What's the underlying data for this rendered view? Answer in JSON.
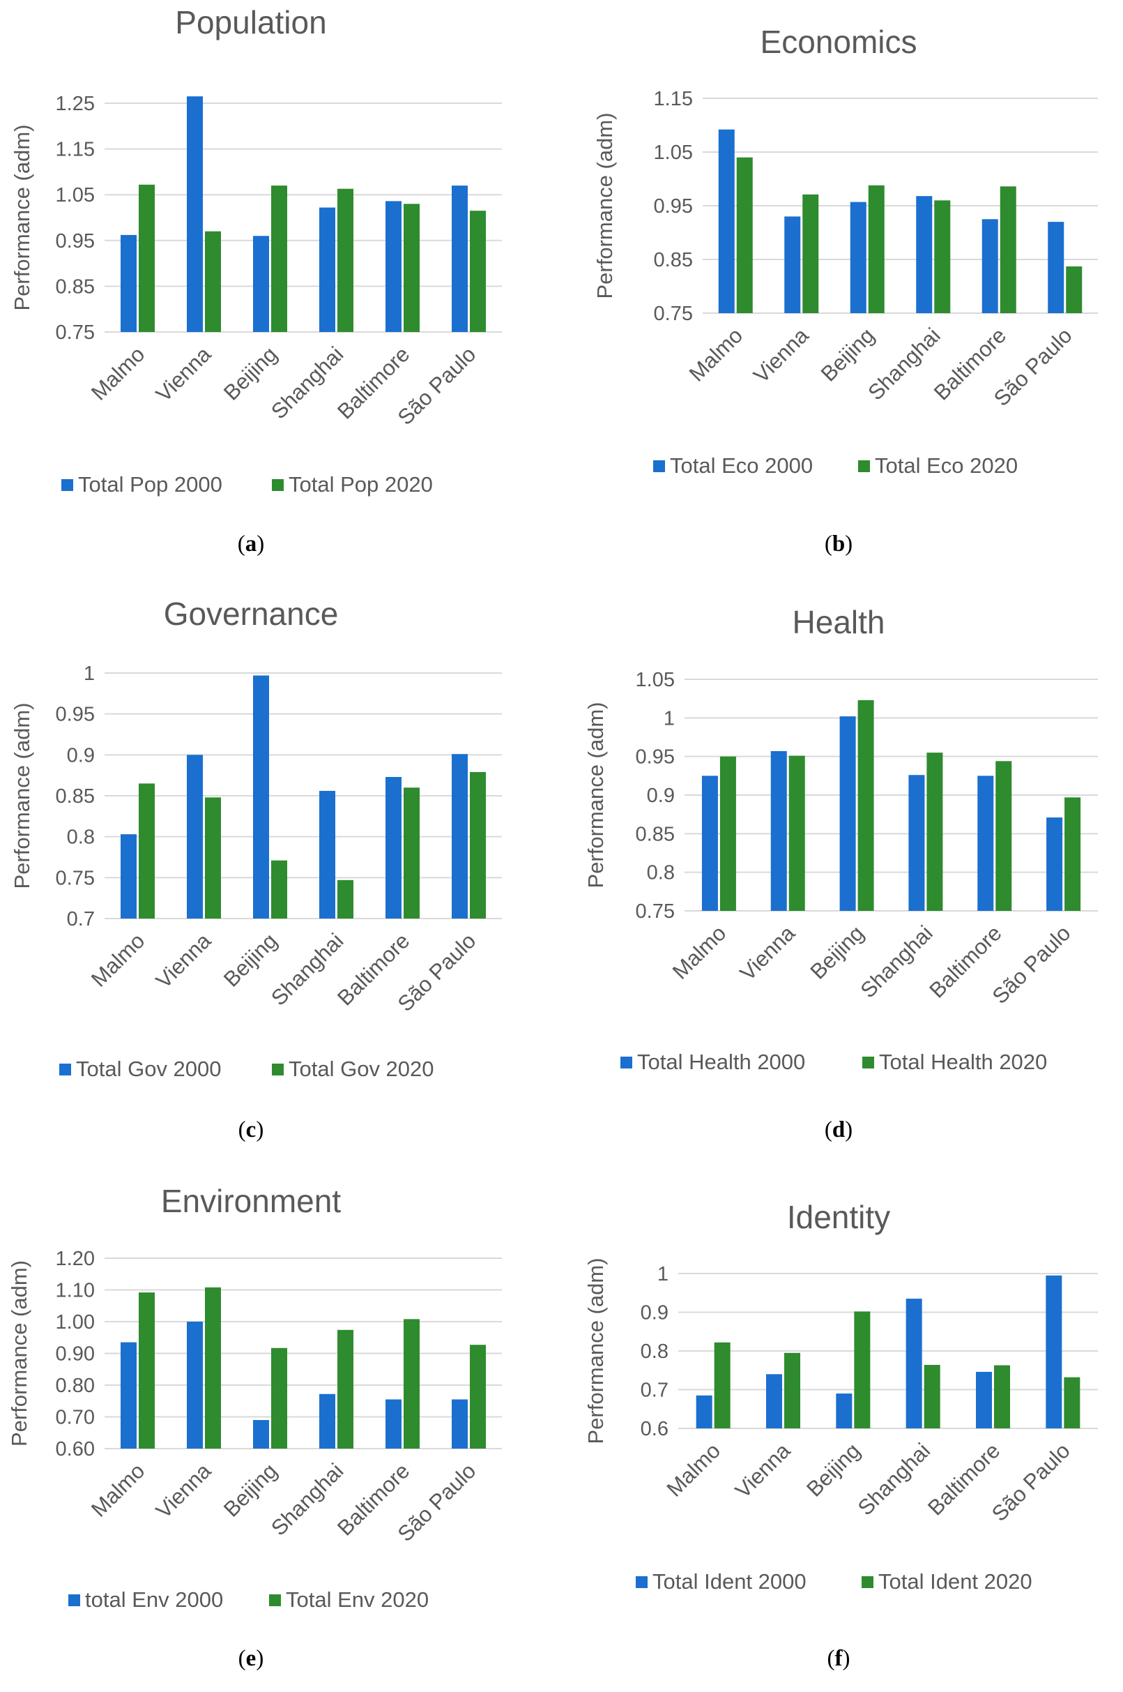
{
  "colors": {
    "series_2000": "#1b6fcf",
    "series_2020": "#2e8b2e",
    "grid": "#d9d9d9",
    "text": "#595959"
  },
  "chart_data": [
    {
      "type": "bar",
      "panel": "(a)",
      "caption_letter": "a",
      "title": "Population",
      "ylabel": "Performance (adm)",
      "categories": [
        "Malmo",
        "Vienna",
        "Beijing",
        "Shanghai",
        "Baltimore",
        "São Paulo"
      ],
      "yticks": [
        "0.75",
        "0.85",
        "0.95",
        "1.05",
        "1.15",
        "1.25"
      ],
      "ylim": [
        0.75,
        1.25
      ],
      "legend_position": "bottom",
      "series": [
        {
          "name": "Total Pop 2000",
          "values": [
            0.962,
            1.265,
            0.96,
            1.022,
            1.036,
            1.07
          ]
        },
        {
          "name": "Total Pop 2020",
          "values": [
            1.072,
            0.97,
            1.07,
            1.063,
            1.03,
            1.015
          ]
        }
      ]
    },
    {
      "type": "bar",
      "panel": "(b)",
      "caption_letter": "b",
      "title": "Economics",
      "ylabel": "Performance (adm)",
      "categories": [
        "Malmo",
        "Vienna",
        "Beijing",
        "Shanghai",
        "Baltimore",
        "São Paulo"
      ],
      "yticks": [
        "0.75",
        "0.85",
        "0.95",
        "1.05",
        "1.15"
      ],
      "ylim": [
        0.75,
        1.15
      ],
      "legend_position": "bottom",
      "series": [
        {
          "name": "Total Eco 2000",
          "values": [
            1.092,
            0.93,
            0.957,
            0.968,
            0.925,
            0.92
          ]
        },
        {
          "name": "Total Eco 2020",
          "values": [
            1.04,
            0.971,
            0.988,
            0.96,
            0.986,
            0.837
          ]
        }
      ]
    },
    {
      "type": "bar",
      "panel": "(c)",
      "caption_letter": "c",
      "title": "Governance",
      "ylabel": "Performance (adm)",
      "categories": [
        "Malmo",
        "Vienna",
        "Beijing",
        "Shanghai",
        "Baltimore",
        "São Paulo"
      ],
      "yticks": [
        "0.7",
        "0.75",
        "0.8",
        "0.85",
        "0.9",
        "0.95",
        "1"
      ],
      "ylim": [
        0.7,
        1.0
      ],
      "legend_position": "bottom",
      "series": [
        {
          "name": "Total Gov 2000",
          "values": [
            0.803,
            0.9,
            0.997,
            0.856,
            0.873,
            0.901
          ]
        },
        {
          "name": "Total Gov 2020",
          "values": [
            0.865,
            0.848,
            0.771,
            0.747,
            0.86,
            0.879
          ]
        }
      ]
    },
    {
      "type": "bar",
      "panel": "(d)",
      "caption_letter": "d",
      "title": "Health",
      "ylabel": "Performance (adm)",
      "categories": [
        "Malmo",
        "Vienna",
        "Beijing",
        "Shanghai",
        "Baltimore",
        "São Paulo"
      ],
      "yticks": [
        "0.75",
        "0.8",
        "0.85",
        "0.9",
        "0.95",
        "1",
        "1.05"
      ],
      "ylim": [
        0.75,
        1.05
      ],
      "legend_position": "bottom",
      "series": [
        {
          "name": "Total Health 2000",
          "values": [
            0.925,
            0.957,
            1.002,
            0.926,
            0.925,
            0.871
          ]
        },
        {
          "name": "Total Health 2020",
          "values": [
            0.95,
            0.951,
            1.023,
            0.955,
            0.944,
            0.897
          ]
        }
      ]
    },
    {
      "type": "bar",
      "panel": "(e)",
      "caption_letter": "e",
      "title": "Environment",
      "ylabel": "Performance (adm)",
      "categories": [
        "Malmo",
        "Vienna",
        "Beijing",
        "Shanghai",
        "Baltimore",
        "São Paulo"
      ],
      "yticks": [
        "0.60",
        "0.70",
        "0.80",
        "0.90",
        "1.00",
        "1.10",
        "1.20"
      ],
      "ylim": [
        0.6,
        1.2
      ],
      "legend_position": "bottom",
      "series": [
        {
          "name": "total Env 2000",
          "values": [
            0.935,
            1.0,
            0.69,
            0.772,
            0.755,
            0.755
          ]
        },
        {
          "name": "Total Env 2020",
          "values": [
            1.092,
            1.108,
            0.917,
            0.974,
            1.008,
            0.927
          ]
        }
      ]
    },
    {
      "type": "bar",
      "panel": "(f)",
      "caption_letter": "f",
      "title": "Identity",
      "ylabel": "Performance (adm)",
      "categories": [
        "Malmo",
        "Vienna",
        "Beijing",
        "Shanghai",
        "Baltimore",
        "São Paulo"
      ],
      "yticks": [
        "0.6",
        "0.7",
        "0.8",
        "0.9",
        "1"
      ],
      "ylim": [
        0.6,
        1.0
      ],
      "legend_position": "bottom",
      "series": [
        {
          "name": "Total Ident 2000",
          "values": [
            0.685,
            0.74,
            0.69,
            0.935,
            0.746,
            0.995
          ]
        },
        {
          "name": "Total Ident 2020",
          "values": [
            0.822,
            0.795,
            0.902,
            0.764,
            0.763,
            0.732
          ]
        }
      ]
    }
  ]
}
